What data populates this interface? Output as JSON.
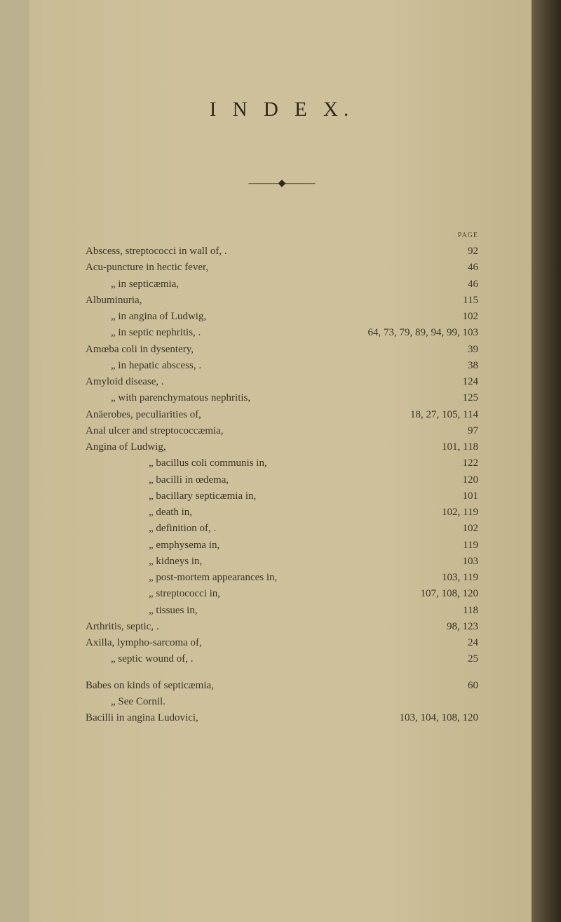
{
  "heading": "I N D E X.",
  "page_label": "PAGE",
  "entries": [
    {
      "text": "Abscess, streptococci in wall of, .",
      "page": "92",
      "indent": 0
    },
    {
      "text": "Acu-puncture in hectic fever,",
      "page": "46",
      "indent": 0
    },
    {
      "text": "„        in septicæmia,",
      "page": "46",
      "indent": 1
    },
    {
      "text": "Albuminuria,",
      "page": "115",
      "indent": 0
    },
    {
      "text": "„        in angina of Ludwig,",
      "page": "102",
      "indent": 1
    },
    {
      "text": "„        in septic nephritis, .",
      "page": "64, 73, 79, 89, 94, 99, 103",
      "indent": 1,
      "wide": true
    },
    {
      "text": "Amœba coli in dysentery,",
      "page": "39",
      "indent": 0
    },
    {
      "text": "„        in hepatic abscess, .",
      "page": "38",
      "indent": 1
    },
    {
      "text": "Amyloid disease, .",
      "page": "124",
      "indent": 0
    },
    {
      "text": "„        with parenchymatous nephritis,",
      "page": "125",
      "indent": 1
    },
    {
      "text": "Anäerobes, peculiarities of,",
      "page": "18, 27, 105, 114",
      "indent": 0,
      "wide": true
    },
    {
      "text": "Anal ulcer and streptococcæmia,",
      "page": "97",
      "indent": 0
    },
    {
      "text": "Angina of Ludwig,",
      "page": "101, 118",
      "indent": 0
    },
    {
      "text": "„        bacillus coli communis in,",
      "page": "122",
      "indent": 2
    },
    {
      "text": "„        bacilli in œdema,",
      "page": "120",
      "indent": 2
    },
    {
      "text": "„        bacillary septicæmia in,",
      "page": "101",
      "indent": 2
    },
    {
      "text": "„        death in,",
      "page": "102, 119",
      "indent": 2
    },
    {
      "text": "„        definition of, .",
      "page": "102",
      "indent": 2
    },
    {
      "text": "„        emphysema in,",
      "page": "119",
      "indent": 2
    },
    {
      "text": "„        kidneys in,",
      "page": "103",
      "indent": 2
    },
    {
      "text": "„        post-mortem appearances in,",
      "page": "103, 119",
      "indent": 2
    },
    {
      "text": "„        streptococci in,",
      "page": "107, 108, 120",
      "indent": 2
    },
    {
      "text": "„        tissues in,",
      "page": "118",
      "indent": 2
    },
    {
      "text": "Arthritis, septic, .",
      "page": "98, 123",
      "indent": 0
    },
    {
      "text": "Axilla, lympho-sarcoma of,",
      "page": "24",
      "indent": 0
    },
    {
      "text": "„    septic wound of, .",
      "page": "25",
      "indent": 1
    },
    {
      "text": "Babes on kinds of septicæmia,",
      "page": "60",
      "indent": 0,
      "gap": true
    },
    {
      "text": "„    See Cornil.",
      "page": "",
      "indent": 1,
      "nopage": true
    },
    {
      "text": "Bacilli in angina Ludovici,",
      "page": "103, 104, 108, 120",
      "indent": 0,
      "wide": true
    }
  ],
  "colors": {
    "page_bg": "#cdc09a",
    "text": "#3a3426",
    "shadow": "#2d2619"
  }
}
